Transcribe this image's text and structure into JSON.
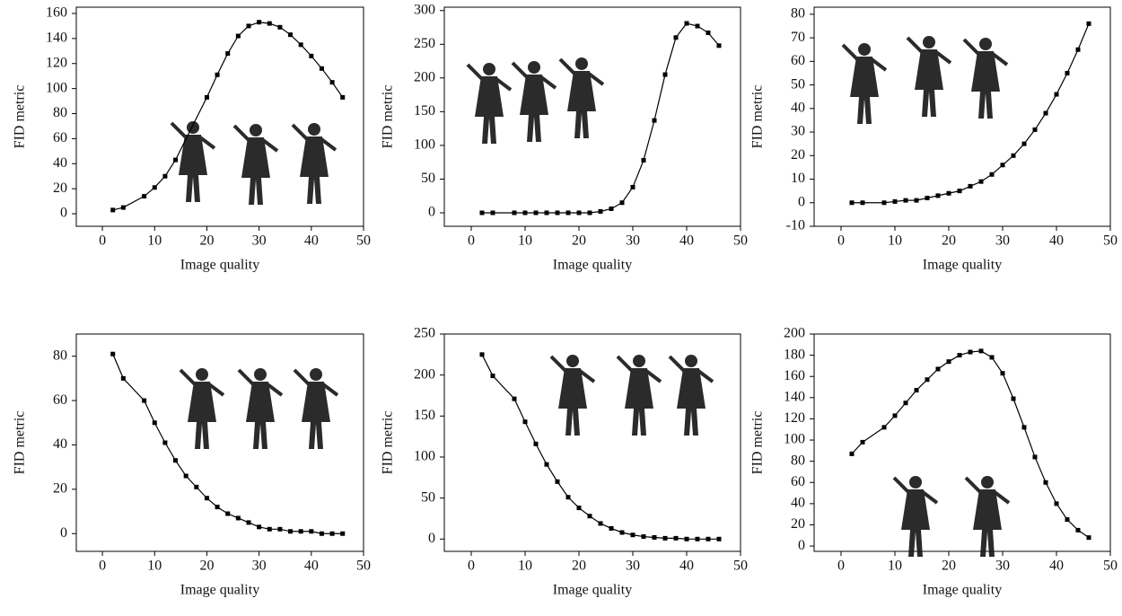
{
  "chart_data": [
    {
      "type": "line",
      "xlabel": "Image quality",
      "ylabel": "FID metric",
      "color": "#000000",
      "marker": "square",
      "x": [
        2,
        4,
        8,
        10,
        12,
        14,
        20,
        22,
        24,
        26,
        28,
        30,
        32,
        34,
        36,
        38,
        40,
        42,
        44,
        46
      ],
      "values": [
        3,
        5,
        14,
        21,
        30,
        43,
        93,
        111,
        128,
        142,
        150,
        153,
        152,
        149,
        143,
        135,
        126,
        116,
        105,
        93
      ],
      "xlim": [
        -5,
        50
      ],
      "ylim": [
        -10,
        165
      ],
      "xticks": [
        0,
        10,
        20,
        30,
        40,
        50
      ],
      "yticks": [
        0,
        20,
        40,
        60,
        80,
        100,
        120,
        140,
        160
      ]
    },
    {
      "type": "line",
      "xlabel": "Image quality",
      "ylabel": "FID metric",
      "color": "#000000",
      "marker": "square",
      "x": [
        2,
        4,
        8,
        10,
        12,
        14,
        16,
        18,
        20,
        22,
        24,
        26,
        28,
        30,
        32,
        34,
        36,
        38,
        40,
        42,
        44,
        46
      ],
      "values": [
        0,
        0,
        0,
        0,
        0,
        0,
        0,
        0,
        0,
        0,
        2,
        6,
        15,
        38,
        78,
        137,
        205,
        260,
        281,
        277,
        267,
        248
      ],
      "xlim": [
        -5,
        50
      ],
      "ylim": [
        -20,
        305
      ],
      "xticks": [
        0,
        10,
        20,
        30,
        40,
        50
      ],
      "yticks": [
        0,
        50,
        100,
        150,
        200,
        250,
        300
      ]
    },
    {
      "type": "line",
      "xlabel": "Image quality",
      "ylabel": "FID metric",
      "color": "#000000",
      "marker": "square",
      "x": [
        2,
        4,
        8,
        10,
        12,
        14,
        16,
        18,
        20,
        22,
        24,
        26,
        28,
        30,
        32,
        34,
        36,
        38,
        40,
        42,
        44,
        46
      ],
      "values": [
        0,
        0,
        0,
        0.5,
        1,
        1,
        2,
        3,
        4,
        5,
        7,
        9,
        12,
        16,
        20,
        25,
        31,
        38,
        46,
        55,
        65,
        76
      ],
      "xlim": [
        -5,
        50
      ],
      "ylim": [
        -10,
        83
      ],
      "xticks": [
        0,
        10,
        20,
        30,
        40,
        50
      ],
      "yticks": [
        -10,
        0,
        10,
        20,
        30,
        40,
        50,
        60,
        70,
        80
      ]
    },
    {
      "type": "line",
      "xlabel": "Image quality",
      "ylabel": "FID metric",
      "color": "#000000",
      "marker": "square",
      "x": [
        2,
        4,
        8,
        10,
        12,
        14,
        16,
        18,
        20,
        22,
        24,
        26,
        28,
        30,
        32,
        34,
        36,
        38,
        40,
        42,
        44,
        46
      ],
      "values": [
        81,
        70,
        60,
        50,
        41,
        33,
        26,
        21,
        16,
        12,
        9,
        7,
        5,
        3,
        2,
        2,
        1,
        1,
        1,
        0,
        0,
        0
      ],
      "xlim": [
        -5,
        50
      ],
      "ylim": [
        -8,
        90
      ],
      "xticks": [
        0,
        10,
        20,
        30,
        40,
        50
      ],
      "yticks": [
        0,
        20,
        40,
        60,
        80
      ]
    },
    {
      "type": "line",
      "xlabel": "Image quality",
      "ylabel": "FID metric",
      "color": "#000000",
      "marker": "square",
      "x": [
        2,
        4,
        8,
        10,
        12,
        14,
        16,
        18,
        20,
        22,
        24,
        26,
        28,
        30,
        32,
        34,
        36,
        38,
        40,
        42,
        44,
        46
      ],
      "values": [
        225,
        199,
        171,
        143,
        116,
        91,
        70,
        51,
        38,
        28,
        19,
        13,
        8,
        5,
        3,
        2,
        1,
        1,
        0,
        0,
        0,
        0
      ],
      "xlim": [
        -5,
        50
      ],
      "ylim": [
        -15,
        250
      ],
      "xticks": [
        0,
        10,
        20,
        30,
        40,
        50
      ],
      "yticks": [
        0,
        50,
        100,
        150,
        200,
        250
      ]
    },
    {
      "type": "line",
      "xlabel": "Image quality",
      "ylabel": "FID metric",
      "color": "#000000",
      "marker": "square",
      "x": [
        2,
        4,
        8,
        10,
        12,
        14,
        16,
        18,
        20,
        22,
        24,
        26,
        28,
        30,
        32,
        34,
        36,
        38,
        40,
        42,
        44,
        46
      ],
      "values": [
        87,
        98,
        112,
        123,
        135,
        147,
        157,
        167,
        174,
        180,
        183,
        184,
        178,
        163,
        139,
        112,
        84,
        60,
        40,
        25,
        15,
        8
      ],
      "xlim": [
        -5,
        50
      ],
      "ylim": [
        -5,
        200
      ],
      "xticks": [
        0,
        10,
        20,
        30,
        40,
        50
      ],
      "yticks": [
        0,
        20,
        40,
        60,
        80,
        100,
        120,
        140,
        160,
        180,
        200
      ]
    }
  ]
}
